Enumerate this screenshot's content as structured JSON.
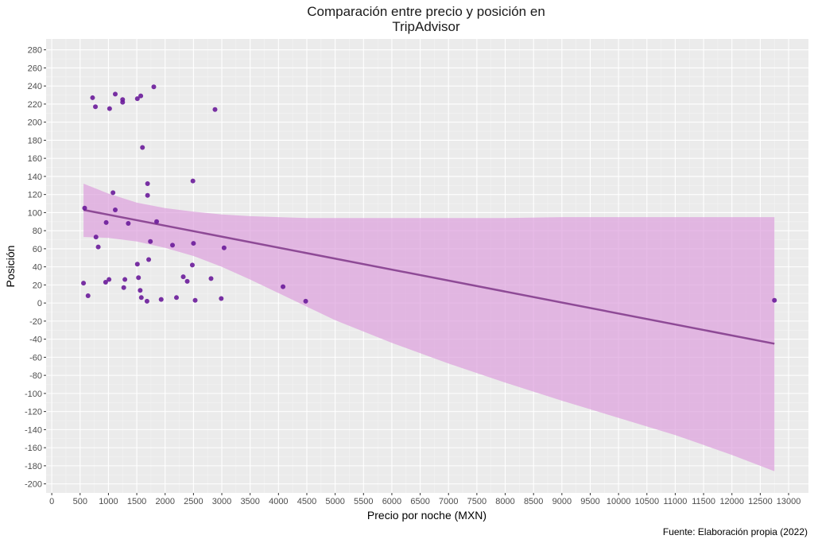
{
  "chart_data": {
    "type": "scatter",
    "title_lines": [
      "Comparación entre precio y posición en",
      "TripAdvisor"
    ],
    "xlabel": "Precio por noche (MXN)",
    "ylabel": "Posición",
    "caption": "Fuente: Elaboración propia (2022)",
    "xlim": [
      -100,
      13350
    ],
    "ylim": [
      -210,
      292
    ],
    "x_ticks": [
      0,
      500,
      1000,
      1500,
      2000,
      2500,
      3000,
      3500,
      4000,
      4500,
      5000,
      5500,
      6000,
      6500,
      7000,
      7500,
      8000,
      8500,
      9000,
      9500,
      10000,
      10500,
      11000,
      11500,
      12000,
      12500,
      13000
    ],
    "y_ticks": [
      -200,
      -180,
      -160,
      -140,
      -120,
      -100,
      -80,
      -60,
      -40,
      -20,
      0,
      20,
      40,
      60,
      80,
      100,
      120,
      140,
      160,
      180,
      200,
      220,
      240,
      260,
      280
    ],
    "grid": true,
    "colors": {
      "panel": "#ebebeb",
      "grid_major": "#ffffff",
      "grid_minor": "#f4f4f4",
      "point": "#6a1b9a",
      "trend_line": "#8e4a96",
      "confidence_band": "#dda0dd"
    },
    "points": [
      {
        "x": 560,
        "y": 22
      },
      {
        "x": 580,
        "y": 105
      },
      {
        "x": 640,
        "y": 8
      },
      {
        "x": 720,
        "y": 227
      },
      {
        "x": 770,
        "y": 217
      },
      {
        "x": 780,
        "y": 73
      },
      {
        "x": 820,
        "y": 62
      },
      {
        "x": 950,
        "y": 23
      },
      {
        "x": 960,
        "y": 89
      },
      {
        "x": 1010,
        "y": 26
      },
      {
        "x": 1020,
        "y": 215
      },
      {
        "x": 1080,
        "y": 122
      },
      {
        "x": 1120,
        "y": 103
      },
      {
        "x": 1120,
        "y": 231
      },
      {
        "x": 1250,
        "y": 222
      },
      {
        "x": 1250,
        "y": 225
      },
      {
        "x": 1270,
        "y": 17
      },
      {
        "x": 1290,
        "y": 26
      },
      {
        "x": 1350,
        "y": 88
      },
      {
        "x": 1510,
        "y": 43
      },
      {
        "x": 1510,
        "y": 226
      },
      {
        "x": 1530,
        "y": 28
      },
      {
        "x": 1560,
        "y": 14
      },
      {
        "x": 1570,
        "y": 229
      },
      {
        "x": 1580,
        "y": 6
      },
      {
        "x": 1600,
        "y": 172
      },
      {
        "x": 1680,
        "y": 2
      },
      {
        "x": 1690,
        "y": 132
      },
      {
        "x": 1690,
        "y": 119
      },
      {
        "x": 1710,
        "y": 48
      },
      {
        "x": 1740,
        "y": 68
      },
      {
        "x": 1800,
        "y": 239
      },
      {
        "x": 1850,
        "y": 90
      },
      {
        "x": 1930,
        "y": 4
      },
      {
        "x": 2130,
        "y": 64
      },
      {
        "x": 2200,
        "y": 6
      },
      {
        "x": 2320,
        "y": 29
      },
      {
        "x": 2390,
        "y": 24
      },
      {
        "x": 2480,
        "y": 42
      },
      {
        "x": 2490,
        "y": 135
      },
      {
        "x": 2500,
        "y": 66
      },
      {
        "x": 2530,
        "y": 3
      },
      {
        "x": 2810,
        "y": 27
      },
      {
        "x": 2880,
        "y": 214
      },
      {
        "x": 2990,
        "y": 5
      },
      {
        "x": 3040,
        "y": 61
      },
      {
        "x": 4080,
        "y": 18
      },
      {
        "x": 4480,
        "y": 2
      },
      {
        "x": 12750,
        "y": 3
      }
    ],
    "trend": {
      "x_start": 560,
      "y_start": 103,
      "x_end": 12750,
      "y_end": -45
    },
    "band": [
      {
        "x": 560,
        "lower": 73,
        "upper": 132
      },
      {
        "x": 1000,
        "lower": 72,
        "upper": 121
      },
      {
        "x": 1500,
        "lower": 68,
        "upper": 111
      },
      {
        "x": 2000,
        "lower": 61,
        "upper": 105
      },
      {
        "x": 2500,
        "lower": 52,
        "upper": 101
      },
      {
        "x": 3000,
        "lower": 40,
        "upper": 98
      },
      {
        "x": 3500,
        "lower": 26,
        "upper": 96
      },
      {
        "x": 4000,
        "lower": 11,
        "upper": 95
      },
      {
        "x": 4500,
        "lower": -4,
        "upper": 94
      },
      {
        "x": 5000,
        "lower": -19,
        "upper": 94
      },
      {
        "x": 6000,
        "lower": -44,
        "upper": 94
      },
      {
        "x": 7000,
        "lower": -67,
        "upper": 94
      },
      {
        "x": 8000,
        "lower": -88,
        "upper": 94
      },
      {
        "x": 9000,
        "lower": -108,
        "upper": 95
      },
      {
        "x": 10000,
        "lower": -127,
        "upper": 95
      },
      {
        "x": 11000,
        "lower": -146,
        "upper": 95
      },
      {
        "x": 12000,
        "lower": -168,
        "upper": 95
      },
      {
        "x": 12750,
        "lower": -186,
        "upper": 95
      }
    ]
  }
}
